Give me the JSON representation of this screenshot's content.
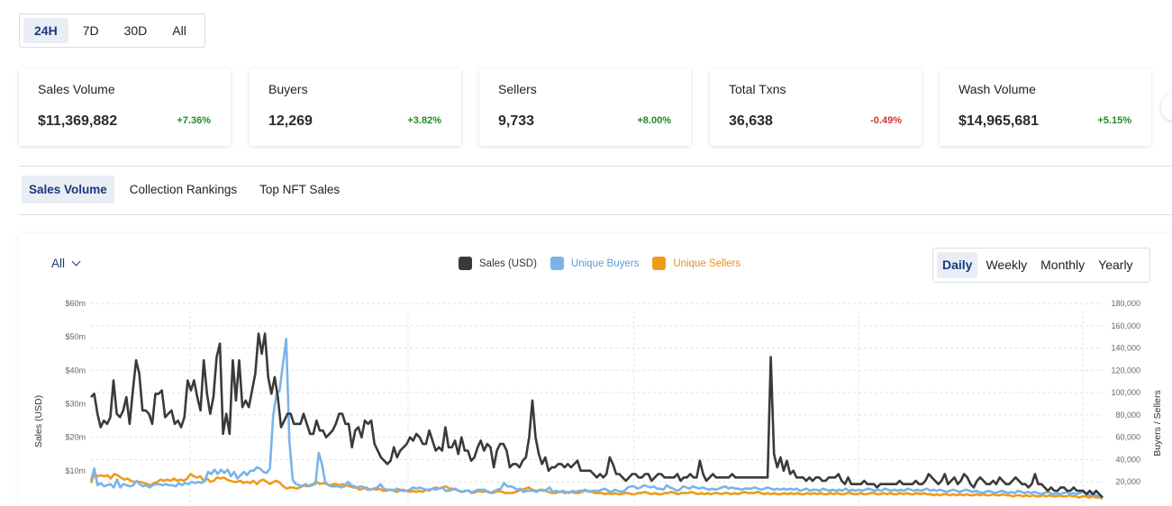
{
  "range_tabs": [
    {
      "label": "24H",
      "active": true
    },
    {
      "label": "7D",
      "active": false
    },
    {
      "label": "30D",
      "active": false
    },
    {
      "label": "All",
      "active": false
    }
  ],
  "stats": [
    {
      "label": "Sales Volume",
      "value": "$11,369,882",
      "change": "+7.36%",
      "trend": "up"
    },
    {
      "label": "Buyers",
      "value": "12,269",
      "change": "+3.82%",
      "trend": "up"
    },
    {
      "label": "Sellers",
      "value": "9,733",
      "change": "+8.00%",
      "trend": "up"
    },
    {
      "label": "Total Txns",
      "value": "36,638",
      "change": "-0.49%",
      "trend": "down"
    },
    {
      "label": "Wash Volume",
      "value": "$14,965,681",
      "change": "+5.15%",
      "trend": "up"
    }
  ],
  "sub_tabs": [
    {
      "label": "Sales Volume",
      "active": true
    },
    {
      "label": "Collection Rankings",
      "active": false
    },
    {
      "label": "Top NFT Sales",
      "active": false
    }
  ],
  "filter": {
    "label": "All"
  },
  "periods": [
    {
      "label": "Daily",
      "active": true
    },
    {
      "label": "Weekly",
      "active": false
    },
    {
      "label": "Monthly",
      "active": false
    },
    {
      "label": "Yearly",
      "active": false
    }
  ],
  "colors": {
    "sales": "#3a3a3a",
    "buyers": "#7ab3e8",
    "sellers": "#f09a1a",
    "accent": "#173b7a",
    "up": "#1f8a24",
    "down": "#d33232"
  },
  "chart_data": {
    "type": "line",
    "ylabel": "Sales (USD)",
    "y2label": "Buyers / Sellers",
    "y_ticks": [
      "$10m",
      "$20m",
      "$30m",
      "$40m",
      "$50m",
      "$60m"
    ],
    "y2_ticks": [
      "20,000",
      "40,000",
      "60,000",
      "80,000",
      "100,000",
      "120,000",
      "140,000",
      "160,000",
      "180,000"
    ],
    "ylim": [
      0,
      60
    ],
    "y2lim": [
      0,
      180000
    ],
    "grid": true,
    "legend_position": "top-center",
    "series": [
      {
        "name": "Sales (USD)",
        "axis": "left",
        "values": [
          32,
          33,
          27,
          23,
          25,
          24,
          26,
          37,
          27,
          26,
          28,
          32,
          24,
          34,
          43,
          39,
          28,
          28,
          27,
          24,
          33,
          33,
          34,
          26,
          27,
          28,
          24,
          25,
          23,
          26,
          37,
          34,
          37,
          32,
          28,
          43,
          33,
          27,
          32,
          44,
          48,
          21,
          27,
          21,
          43,
          31,
          43,
          29,
          31,
          29,
          34,
          39,
          51,
          45,
          51,
          38,
          33,
          38,
          32,
          23,
          25,
          27,
          27,
          24,
          24,
          24,
          27,
          24,
          21,
          21,
          25,
          22,
          22,
          20,
          21,
          22,
          24,
          27,
          27,
          24,
          24,
          17,
          22,
          23,
          20,
          25,
          24,
          25,
          18,
          16,
          14,
          13,
          12,
          13,
          17,
          14,
          16,
          17,
          18,
          20,
          19,
          21,
          20,
          18,
          18,
          22,
          19,
          16,
          17,
          16,
          23,
          17,
          17,
          19,
          15,
          20,
          16,
          16,
          13,
          14,
          17,
          19,
          16,
          18,
          17,
          11,
          16,
          18,
          18,
          16,
          11,
          12,
          12,
          11,
          13,
          14,
          20,
          31,
          20,
          15,
          12,
          14,
          10,
          11,
          11,
          12,
          12,
          11,
          12,
          11,
          12,
          13,
          10,
          10,
          10,
          10,
          9,
          8,
          9,
          8,
          9,
          14,
          12,
          9,
          9,
          8,
          7,
          8,
          9,
          9,
          8,
          8,
          9,
          9,
          7,
          8,
          9,
          9,
          8,
          8,
          8,
          8,
          9,
          7,
          8,
          8,
          9,
          8,
          8,
          13,
          9,
          7,
          8,
          9,
          8,
          8,
          8,
          8,
          8,
          9,
          8,
          8,
          8,
          8,
          8,
          8,
          8,
          8,
          8,
          8,
          8,
          44,
          15,
          11,
          14,
          10,
          13,
          9,
          10,
          8,
          8,
          8,
          7,
          8,
          7,
          8,
          8,
          7,
          7,
          8,
          8,
          8,
          9,
          7,
          6,
          8,
          6,
          6,
          6,
          6,
          7,
          6,
          6,
          6,
          5,
          6,
          6,
          6,
          6,
          6,
          6,
          7,
          6,
          6,
          6,
          6,
          7,
          6,
          6,
          7,
          9,
          8,
          7,
          6,
          7,
          9,
          6,
          7,
          8,
          6,
          7,
          9,
          8,
          6,
          5,
          7,
          8,
          7,
          6,
          6,
          7,
          6,
          8,
          7,
          6,
          6,
          7,
          8,
          7,
          6,
          6,
          5,
          6,
          9,
          6,
          6,
          5,
          4,
          5,
          4,
          4,
          5,
          5,
          4,
          4,
          5,
          4,
          4,
          4,
          3,
          4,
          3,
          4,
          3,
          2
        ]
      },
      {
        "name": "Unique Buyers",
        "axis": "right",
        "values": [
          21000,
          32000,
          17000,
          19000,
          16000,
          17000,
          18000,
          15000,
          22000,
          15000,
          18000,
          17000,
          16000,
          17000,
          21000,
          18000,
          16000,
          17000,
          15000,
          17000,
          18000,
          18000,
          17000,
          18000,
          17000,
          17000,
          16000,
          19000,
          17000,
          19000,
          18000,
          20000,
          19000,
          20000,
          19000,
          21000,
          29000,
          27000,
          31000,
          27000,
          31000,
          28000,
          31000,
          25000,
          29000,
          23000,
          26000,
          29000,
          26000,
          30000,
          30000,
          33000,
          32000,
          29000,
          28000,
          32000,
          79000,
          98000,
          102000,
          125000,
          148000,
          56000,
          22000,
          18000,
          17000,
          16000,
          18000,
          16000,
          17000,
          18000,
          46000,
          36000,
          20000,
          17000,
          16000,
          16000,
          16000,
          15000,
          16000,
          20000,
          17000,
          16000,
          15000,
          16000,
          15000,
          13000,
          13000,
          14000,
          15000,
          18000,
          14000,
          13000,
          13000,
          12000,
          14000,
          13000,
          12000,
          12000,
          13000,
          15000,
          14000,
          15000,
          14000,
          13000,
          13000,
          14000,
          13000,
          14000,
          15000,
          12000,
          12000,
          13000,
          14000,
          12000,
          11000,
          12000,
          12000,
          10000,
          12000,
          13000,
          13000,
          13000,
          11000,
          10000,
          12000,
          13000,
          14000,
          19000,
          16000,
          16000,
          15000,
          13000,
          14000,
          11000,
          12000,
          12000,
          12000,
          11000,
          13000,
          12000,
          13000,
          15000,
          11000,
          12000,
          11000,
          12000,
          11000,
          10000,
          12000,
          11000,
          12000,
          12000,
          13000,
          11000,
          12000,
          12000,
          12000,
          13000,
          14000,
          12000,
          11000,
          13000,
          12000,
          11000,
          12000,
          15000,
          16000,
          16000,
          14000,
          15000,
          17000,
          16000,
          15000,
          16000,
          14000,
          14000,
          13000,
          17000,
          15000,
          14000,
          12000,
          13000,
          16000,
          15000,
          14000,
          16000,
          15000,
          14000,
          15000,
          14000,
          13000,
          14000,
          13000,
          14000,
          15000,
          16000,
          14000,
          15000,
          14000,
          14000,
          13000,
          14000,
          14000,
          14000,
          15000,
          14000,
          13000,
          14000,
          15000,
          14000,
          13000,
          14000,
          13000,
          14000,
          13000,
          14000,
          13000,
          14000,
          12000,
          13000,
          14000,
          12000,
          13000,
          13000,
          12000,
          14000,
          13000,
          12000,
          13000,
          12000,
          13000,
          12000,
          14000,
          12000,
          13000,
          12000,
          13000,
          12000,
          13000,
          14000,
          13000,
          12000,
          13000,
          12000,
          14000,
          13000,
          12000,
          13000,
          12000,
          13000,
          12000,
          14000,
          13000,
          12000,
          13000,
          12000,
          13000,
          14000,
          12000,
          13000,
          12000,
          13000,
          12000,
          11000,
          12000,
          13000,
          12000,
          11000,
          12000,
          13000,
          12000,
          11000,
          12000,
          11000,
          10000,
          11000,
          12000,
          11000,
          10000,
          11000,
          12000,
          11000,
          10000,
          11000,
          10000,
          12000,
          11000,
          10000,
          11000,
          10000,
          11000,
          10000,
          9000,
          10000,
          11000,
          10000,
          9000,
          10000,
          9000,
          10000,
          11000,
          9000,
          10000,
          9000,
          10000,
          11000,
          9000,
          8000,
          9000,
          8000,
          7000,
          6000
        ]
      },
      {
        "name": "Unique Sellers",
        "axis": "right",
        "values": [
          19000,
          27000,
          25000,
          26000,
          25000,
          26000,
          23000,
          27000,
          26000,
          24000,
          22000,
          23000,
          21000,
          20000,
          20000,
          20000,
          19000,
          18000,
          17000,
          19000,
          20000,
          22000,
          21000,
          22000,
          21000,
          23000,
          21000,
          22000,
          21000,
          23000,
          27000,
          25000,
          24000,
          25000,
          21000,
          23000,
          20000,
          21000,
          24000,
          23000,
          24000,
          22000,
          21000,
          20000,
          20000,
          21000,
          19000,
          20000,
          19000,
          21000,
          18000,
          21000,
          22000,
          20000,
          18000,
          20000,
          21000,
          19000,
          16000,
          14000,
          15000,
          15000,
          14000,
          15000,
          17000,
          16000,
          17000,
          18000,
          20000,
          18000,
          19000,
          18000,
          17000,
          18000,
          18000,
          17000,
          18000,
          17000,
          16000,
          15000,
          15000,
          13000,
          14000,
          15000,
          13000,
          14000,
          13000,
          14000,
          12000,
          12000,
          13000,
          13000,
          11000,
          12000,
          13000,
          12000,
          11000,
          12000,
          11000,
          12000,
          11000,
          13000,
          12000,
          14000,
          15000,
          14000,
          15000,
          16000,
          14000,
          14000,
          13000,
          12000,
          11000,
          12000,
          12000,
          10000,
          11000,
          12000,
          11000,
          12000,
          11000,
          10000,
          11000,
          12000,
          11000,
          10000,
          10000,
          10000,
          11000,
          12000,
          13000,
          14000,
          15000,
          13000,
          12000,
          12000,
          13000,
          12000,
          11000,
          10000,
          10000,
          11000,
          11000,
          10000,
          11000,
          11000,
          10000,
          10000,
          11000,
          12000,
          12000,
          11000,
          10000,
          10000,
          10000,
          9000,
          10000,
          9000,
          10000,
          9000,
          9000,
          10000,
          10000,
          9000,
          9000,
          10000,
          10000,
          11000,
          10000,
          9000,
          10000,
          9000,
          9000,
          10000,
          10000,
          11000,
          10000,
          9000,
          10000,
          10000,
          10000,
          11000,
          10000,
          9000,
          10000,
          9000,
          10000,
          9000,
          10000,
          10000,
          9000,
          10000,
          10000,
          9000,
          10000,
          9000,
          10000,
          11000,
          10000,
          10000,
          10000,
          11000,
          10000,
          9000,
          10000,
          9000,
          10000,
          9000,
          9000,
          10000,
          9000,
          10000,
          9000,
          10000,
          9000,
          9000,
          10000,
          9000,
          10000,
          9000,
          10000,
          9000,
          9000,
          10000,
          9000,
          10000,
          9000,
          9000,
          10000,
          10000,
          9000,
          9000,
          10000,
          9000,
          9000,
          10000,
          10000,
          9000,
          9000,
          10000,
          9000,
          10000,
          9000,
          9000,
          10000,
          9000,
          10000,
          9000,
          9000,
          10000,
          9000,
          10000,
          9000,
          9000,
          8000,
          9000,
          8000,
          9000,
          9000,
          8000,
          9000,
          8000,
          9000,
          8000,
          9000,
          8000,
          8000,
          9000,
          8000,
          9000,
          8000,
          8000,
          9000,
          8000,
          8000,
          9000,
          8000,
          8000,
          7000,
          8000,
          8000,
          7000,
          8000,
          7000,
          8000,
          7000,
          7000,
          8000,
          7000,
          8000,
          7000,
          7000,
          8000,
          7000,
          7000,
          8000,
          7000,
          7000,
          6000,
          7000,
          7000,
          6000,
          7000,
          6000,
          6000,
          5000
        ]
      }
    ]
  }
}
